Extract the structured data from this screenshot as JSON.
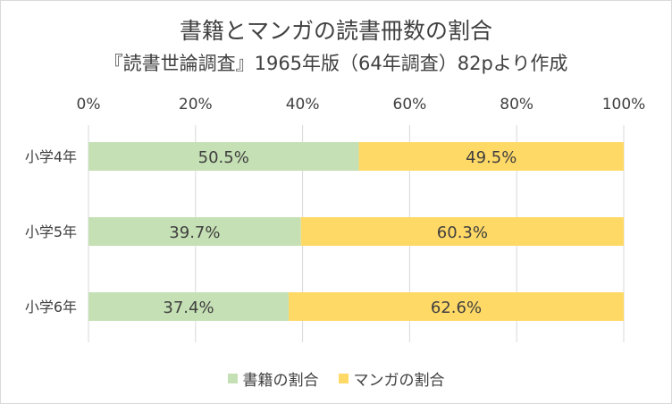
{
  "colors": {
    "books": "#c5e0b4",
    "manga": "#ffd966",
    "text": "#404040",
    "grid": "#d9d9d9"
  },
  "chart_data": {
    "type": "bar",
    "orientation": "horizontal",
    "stacked": "percent",
    "title": "書籍とマンガの読書冊数の割合",
    "subtitle": "『読書世論調査』1965年版（64年調査）82pより作成",
    "categories": [
      "小学4年",
      "小学5年",
      "小学6年"
    ],
    "series": [
      {
        "name": "書籍の割合",
        "values": [
          50.5,
          39.7,
          37.4
        ],
        "labels": [
          "50.5%",
          "39.7%",
          "37.4%"
        ],
        "color": "#c5e0b4"
      },
      {
        "name": "マンガの割合",
        "values": [
          49.5,
          60.3,
          62.6
        ],
        "labels": [
          "49.5%",
          "60.3%",
          "62.6%"
        ],
        "color": "#ffd966"
      }
    ],
    "xlim": [
      0,
      100
    ],
    "x_ticks": [
      "0%",
      "20%",
      "40%",
      "60%",
      "80%",
      "100%"
    ],
    "x_axis_position": "top",
    "grid": true,
    "legend": "bottom"
  }
}
